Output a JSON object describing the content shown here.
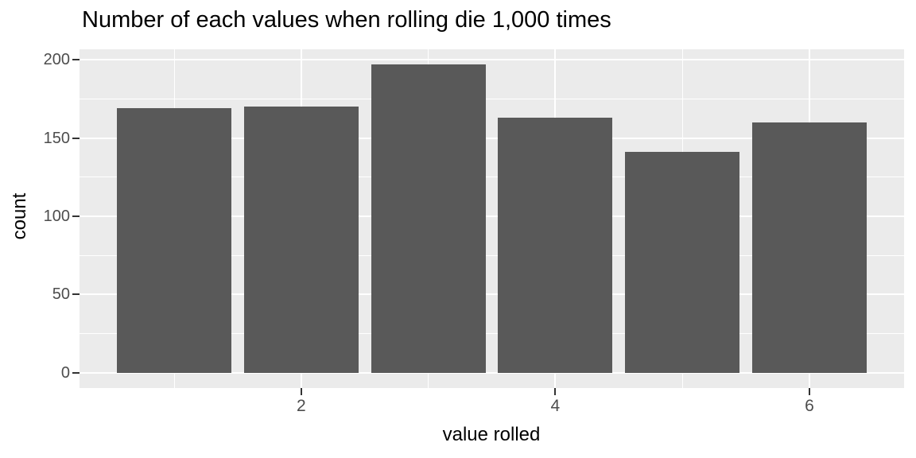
{
  "chart_data": {
    "type": "bar",
    "title": "Number of each values when rolling die 1,000 times",
    "xlabel": "value rolled",
    "ylabel": "count",
    "categories": [
      1,
      2,
      3,
      4,
      5,
      6
    ],
    "values": [
      169,
      170,
      197,
      163,
      141,
      160
    ],
    "total_rolls": 1000,
    "x_tick_values": [
      2,
      4,
      6
    ],
    "x_tick_labels": [
      "2",
      "4",
      "6"
    ],
    "x_minor_values": [
      1,
      3,
      5
    ],
    "y_tick_values": [
      0,
      50,
      100,
      150,
      200
    ],
    "y_tick_labels": [
      "0",
      "50",
      "100",
      "150",
      "200"
    ],
    "y_minor_values": [
      25,
      75,
      125,
      175
    ],
    "xlim": [
      0.255,
      6.745
    ],
    "ylim": [
      -9.85,
      206.85
    ],
    "bar_width_units": 0.9,
    "grid": "major+minor",
    "legend_position": "none",
    "colors": {
      "bar_fill": "#595959",
      "panel_background": "#EBEBEB",
      "gridline": "#FFFFFF",
      "tick_label": "#4D4D4D",
      "tick_mark": "#333333",
      "axis_title": "#000000",
      "title": "#000000",
      "figure_background": "#FFFFFF"
    }
  }
}
